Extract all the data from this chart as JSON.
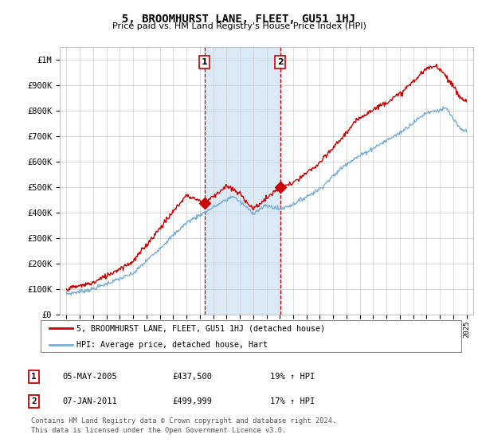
{
  "title": "5, BROOMHURST LANE, FLEET, GU51 1HJ",
  "subtitle": "Price paid vs. HM Land Registry's House Price Index (HPI)",
  "legend_line1": "5, BROOMHURST LANE, FLEET, GU51 1HJ (detached house)",
  "legend_line2": "HPI: Average price, detached house, Hart",
  "annotation1_label": "1",
  "annotation1_date": "05-MAY-2005",
  "annotation1_price": "£437,500",
  "annotation1_hpi": "19% ↑ HPI",
  "annotation2_label": "2",
  "annotation2_date": "07-JAN-2011",
  "annotation2_price": "£499,999",
  "annotation2_hpi": "17% ↑ HPI",
  "footer1": "Contains HM Land Registry data © Crown copyright and database right 2024.",
  "footer2": "This data is licensed under the Open Government Licence v3.0.",
  "sale1_year": 2005.35,
  "sale1_value": 437500,
  "sale2_year": 2011.02,
  "sale2_value": 499999,
  "red_color": "#cc0000",
  "blue_color": "#7aafd4",
  "shade_color": "#daeaf6",
  "ylim_min": 0,
  "ylim_max": 1050000,
  "xlim_min": 1994.5,
  "xlim_max": 2025.5,
  "background_color": "#ffffff"
}
